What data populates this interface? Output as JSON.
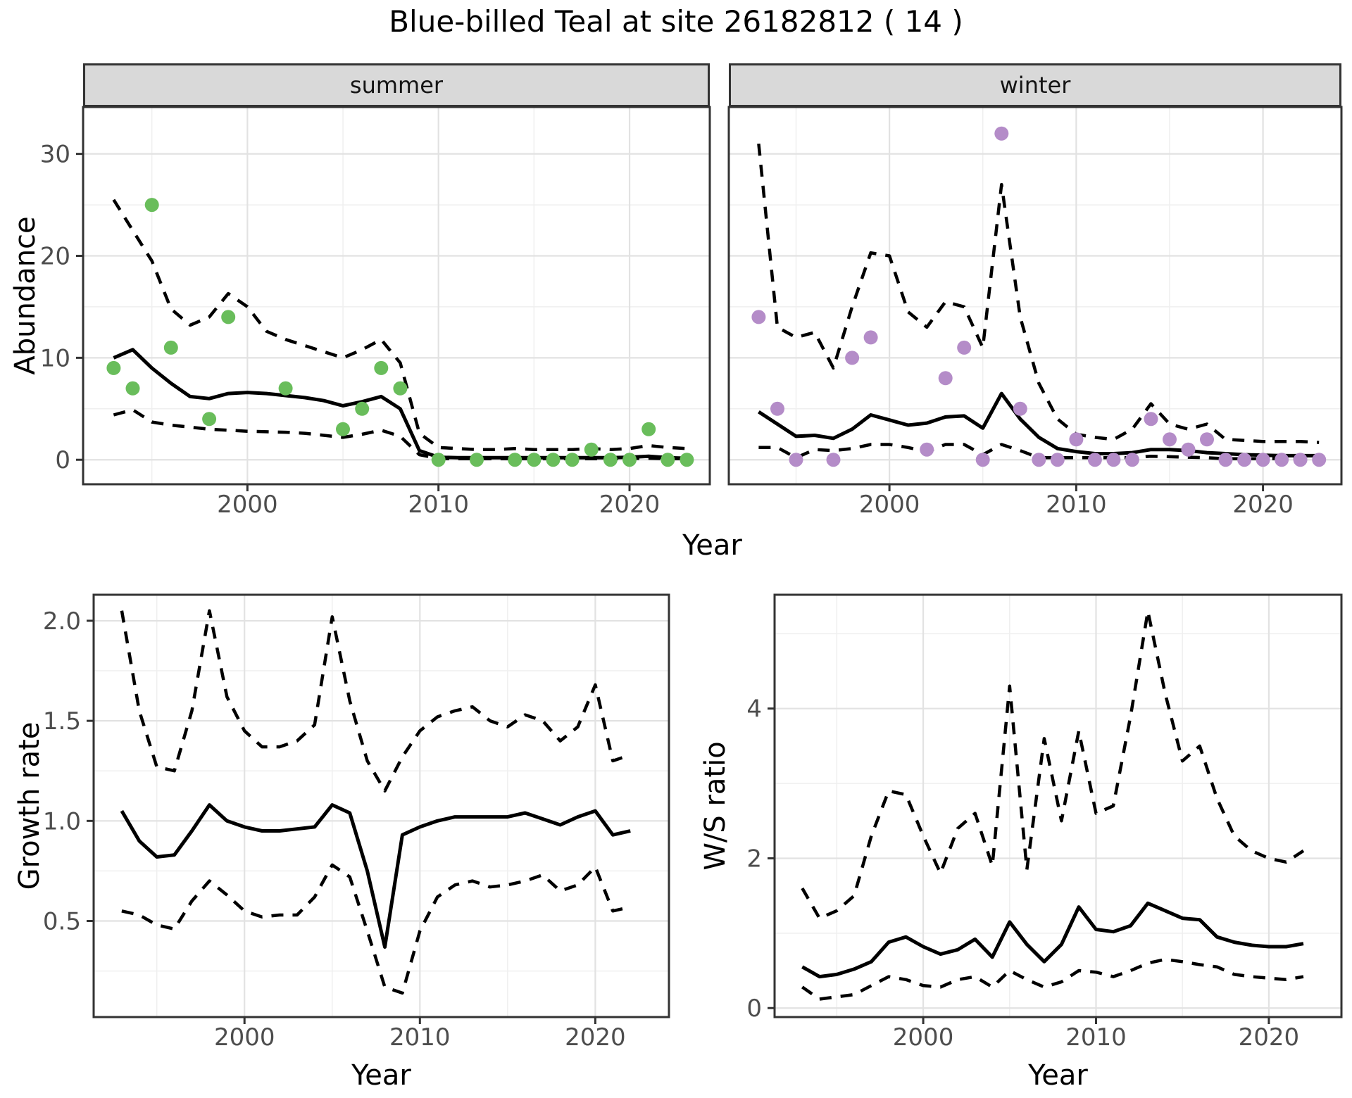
{
  "title": "Blue-billed Teal at site 26182812 ( 14 )",
  "colors": {
    "summer_points": "#69bd5b",
    "winter_points": "#b48cc8",
    "line": "#000000",
    "strip_bg": "#d9d9d9",
    "grid_major": "#e2e2e2",
    "grid_minor": "#efefef",
    "axis_text": "#4d4d4d",
    "panel_border": "#333333"
  },
  "chart_data": [
    {
      "id": "abundance-summer",
      "type": "line",
      "facet_label": "summer",
      "xlabel": "Year",
      "ylabel": "Abundance",
      "x_range": [
        1991.4,
        2024.2
      ],
      "y_range": [
        -2.4,
        34.6
      ],
      "xticks": {
        "values": [
          2000,
          2010,
          2020
        ],
        "labels": [
          "2000",
          "2010",
          "2020"
        ],
        "minor": [
          1995,
          2005,
          2015
        ]
      },
      "yticks": {
        "values": [
          0,
          10,
          20,
          30
        ],
        "labels": [
          "0",
          "10",
          "20",
          "30"
        ],
        "minor": [
          5,
          15,
          25
        ]
      },
      "line_years": [
        1993,
        1994,
        1995,
        1996,
        1997,
        1998,
        1999,
        2000,
        2001,
        2002,
        2003,
        2004,
        2005,
        2006,
        2007,
        2008,
        2009,
        2010,
        2011,
        2012,
        2013,
        2014,
        2015,
        2016,
        2017,
        2018,
        2019,
        2020,
        2021,
        2022,
        2023
      ],
      "series": [
        {
          "name": "upper-ci",
          "style": "dashed",
          "values": [
            25.5,
            22.5,
            19.5,
            14.8,
            13.2,
            14.0,
            16.3,
            15.0,
            12.6,
            11.8,
            11.2,
            10.6,
            10.0,
            10.8,
            11.8,
            9.5,
            2.6,
            1.2,
            1.1,
            1.0,
            1.0,
            1.1,
            1.0,
            1.0,
            1.0,
            1.1,
            1.0,
            1.1,
            1.4,
            1.2,
            1.1
          ]
        },
        {
          "name": "median",
          "style": "solid",
          "values": [
            10.0,
            10.8,
            9.0,
            7.5,
            6.2,
            6.0,
            6.5,
            6.6,
            6.5,
            6.3,
            6.1,
            5.8,
            5.3,
            5.7,
            6.2,
            5.0,
            0.9,
            0.25,
            0.2,
            0.2,
            0.2,
            0.2,
            0.2,
            0.2,
            0.2,
            0.2,
            0.2,
            0.25,
            0.35,
            0.2,
            0.15
          ]
        },
        {
          "name": "lower-ci",
          "style": "dashed",
          "values": [
            4.4,
            4.9,
            3.7,
            3.4,
            3.2,
            3.0,
            2.9,
            2.8,
            2.75,
            2.7,
            2.6,
            2.4,
            2.2,
            2.5,
            2.9,
            2.3,
            0.5,
            0.12,
            0.1,
            0.1,
            0.1,
            0.1,
            0.1,
            0.1,
            0.1,
            0.1,
            0.1,
            0.12,
            0.15,
            0.1,
            0.1
          ]
        }
      ],
      "points": {
        "color": "#69bd5b",
        "years": [
          1993,
          1994,
          1995,
          1996,
          1998,
          1999,
          2002,
          2005,
          2006,
          2007,
          2008,
          2010,
          2012,
          2014,
          2015,
          2016,
          2017,
          2018,
          2019,
          2020,
          2021,
          2022,
          2023
        ],
        "values": [
          9,
          7,
          25,
          11,
          4,
          14,
          7,
          3,
          5,
          9,
          7,
          0,
          0,
          0,
          0,
          0,
          0,
          1,
          0,
          0,
          3,
          0,
          0
        ]
      }
    },
    {
      "id": "abundance-winter",
      "type": "line",
      "facet_label": "winter",
      "xlabel": "Year",
      "ylabel": "Abundance",
      "x_range": [
        1991.4,
        2024.2
      ],
      "y_range": [
        -2.4,
        34.6
      ],
      "xticks": {
        "values": [
          2000,
          2010,
          2020
        ],
        "labels": [
          "2000",
          "2010",
          "2020"
        ],
        "minor": [
          1995,
          2005,
          2015
        ]
      },
      "yticks": {
        "values": [
          0,
          10,
          20,
          30
        ],
        "labels": [],
        "minor": [
          5,
          15,
          25
        ]
      },
      "line_years": [
        1993,
        1994,
        1995,
        1996,
        1997,
        1998,
        1999,
        2000,
        2001,
        2002,
        2003,
        2004,
        2005,
        2006,
        2007,
        2008,
        2009,
        2010,
        2011,
        2012,
        2013,
        2014,
        2015,
        2016,
        2017,
        2018,
        2019,
        2020,
        2021,
        2022,
        2023
      ],
      "series": [
        {
          "name": "upper-ci",
          "style": "dashed",
          "values": [
            31,
            13,
            12,
            12.5,
            9,
            15,
            20.3,
            20,
            14.5,
            13,
            15.5,
            15,
            11,
            27,
            14,
            7.5,
            4,
            2.5,
            2.2,
            2,
            3,
            5.5,
            3.5,
            3,
            3.5,
            2,
            1.9,
            1.8,
            1.8,
            1.8,
            1.7
          ]
        },
        {
          "name": "median",
          "style": "solid",
          "values": [
            4.7,
            3.5,
            2.3,
            2.4,
            2.1,
            3.0,
            4.4,
            3.9,
            3.4,
            3.6,
            4.2,
            4.3,
            3.1,
            6.5,
            4.0,
            2.2,
            1.1,
            0.8,
            0.6,
            0.6,
            0.7,
            1.0,
            1.0,
            0.9,
            0.7,
            0.6,
            0.5,
            0.45,
            0.4,
            0.4,
            0.4
          ]
        },
        {
          "name": "lower-ci",
          "style": "dashed",
          "values": [
            1.2,
            1.2,
            0.2,
            1.0,
            0.9,
            1.1,
            1.5,
            1.5,
            1.2,
            0.8,
            1.5,
            1.5,
            0.5,
            1.5,
            0.9,
            0.2,
            0.2,
            0.2,
            0.2,
            0.2,
            0.2,
            0.35,
            0.3,
            0.25,
            0.2,
            0.1,
            0.1,
            0.1,
            0.1,
            0.1,
            0.1
          ]
        }
      ],
      "points": {
        "color": "#b48cc8",
        "years": [
          1993,
          1994,
          1995,
          1997,
          1998,
          1999,
          2002,
          2003,
          2004,
          2005,
          2006,
          2007,
          2008,
          2009,
          2010,
          2011,
          2012,
          2013,
          2014,
          2015,
          2016,
          2017,
          2018,
          2019,
          2020,
          2021,
          2022,
          2023
        ],
        "values": [
          14,
          5,
          0,
          0,
          10,
          12,
          1,
          8,
          11,
          0,
          32,
          5,
          0,
          0,
          2,
          0,
          0,
          0,
          4,
          2,
          1,
          2,
          0,
          0,
          0,
          0,
          0,
          0
        ]
      }
    },
    {
      "id": "growth-rate",
      "type": "line",
      "facet_label": "",
      "xlabel": "Year",
      "ylabel": "Growth rate",
      "x_range": [
        1991.4,
        2024.2
      ],
      "y_range": [
        0.02,
        2.13
      ],
      "xticks": {
        "values": [
          2000,
          2010,
          2020
        ],
        "labels": [
          "2000",
          "2010",
          "2020"
        ],
        "minor": [
          1995,
          2005,
          2015
        ]
      },
      "yticks": {
        "values": [
          0.5,
          1.0,
          1.5,
          2.0
        ],
        "labels": [
          "0.5",
          "1.0",
          "1.5",
          "2.0"
        ],
        "minor": [
          0.25,
          0.75,
          1.25,
          1.75
        ]
      },
      "line_years": [
        1993,
        1994,
        1995,
        1996,
        1997,
        1998,
        1999,
        2000,
        2001,
        2002,
        2003,
        2004,
        2005,
        2006,
        2007,
        2008,
        2009,
        2010,
        2011,
        2012,
        2013,
        2014,
        2015,
        2016,
        2017,
        2018,
        2019,
        2020,
        2021,
        2022
      ],
      "series": [
        {
          "name": "upper-ci",
          "style": "dashed",
          "values": [
            2.05,
            1.55,
            1.27,
            1.25,
            1.55,
            2.05,
            1.62,
            1.45,
            1.37,
            1.37,
            1.4,
            1.48,
            2.02,
            1.6,
            1.3,
            1.15,
            1.32,
            1.45,
            1.52,
            1.55,
            1.57,
            1.5,
            1.47,
            1.53,
            1.5,
            1.4,
            1.47,
            1.68,
            1.3,
            1.33
          ]
        },
        {
          "name": "median",
          "style": "solid",
          "values": [
            1.05,
            0.9,
            0.82,
            0.83,
            0.95,
            1.08,
            1.0,
            0.97,
            0.95,
            0.95,
            0.96,
            0.97,
            1.08,
            1.04,
            0.75,
            0.37,
            0.93,
            0.97,
            1.0,
            1.02,
            1.02,
            1.02,
            1.02,
            1.04,
            1.01,
            0.98,
            1.02,
            1.05,
            0.93,
            0.95
          ]
        },
        {
          "name": "lower-ci",
          "style": "dashed",
          "values": [
            0.55,
            0.53,
            0.48,
            0.46,
            0.6,
            0.7,
            0.63,
            0.55,
            0.52,
            0.53,
            0.53,
            0.62,
            0.78,
            0.72,
            0.45,
            0.17,
            0.14,
            0.45,
            0.62,
            0.68,
            0.7,
            0.67,
            0.68,
            0.7,
            0.73,
            0.65,
            0.68,
            0.77,
            0.55,
            0.57
          ]
        }
      ],
      "points": null
    },
    {
      "id": "ws-ratio",
      "type": "line",
      "facet_label": "",
      "xlabel": "Year",
      "ylabel": "W/S ratio",
      "x_range": [
        1991.4,
        2024.2
      ],
      "y_range": [
        -0.12,
        5.52
      ],
      "xticks": {
        "values": [
          2000,
          2010,
          2020
        ],
        "labels": [
          "2000",
          "2010",
          "2020"
        ],
        "minor": [
          1995,
          2005,
          2015
        ]
      },
      "yticks": {
        "values": [
          0,
          2,
          4
        ],
        "labels": [
          "0",
          "2",
          "4"
        ],
        "minor": [
          1,
          3,
          5
        ]
      },
      "line_years": [
        1993,
        1994,
        1995,
        1996,
        1997,
        1998,
        1999,
        2000,
        2001,
        2002,
        2003,
        2004,
        2005,
        2006,
        2007,
        2008,
        2009,
        2010,
        2011,
        2012,
        2013,
        2014,
        2015,
        2016,
        2017,
        2018,
        2019,
        2020,
        2021,
        2022
      ],
      "series": [
        {
          "name": "upper-ci",
          "style": "dashed",
          "values": [
            1.6,
            1.2,
            1.3,
            1.5,
            2.3,
            2.9,
            2.85,
            2.3,
            1.8,
            2.4,
            2.6,
            1.9,
            4.3,
            1.85,
            3.6,
            2.5,
            3.7,
            2.6,
            2.7,
            3.9,
            5.3,
            4.2,
            3.3,
            3.5,
            2.8,
            2.3,
            2.1,
            2.0,
            1.95,
            2.1
          ]
        },
        {
          "name": "median",
          "style": "solid",
          "values": [
            0.55,
            0.42,
            0.45,
            0.52,
            0.62,
            0.88,
            0.95,
            0.82,
            0.72,
            0.78,
            0.92,
            0.68,
            1.15,
            0.85,
            0.62,
            0.85,
            1.35,
            1.05,
            1.02,
            1.1,
            1.4,
            1.3,
            1.2,
            1.18,
            0.95,
            0.88,
            0.84,
            0.82,
            0.82,
            0.86
          ]
        },
        {
          "name": "lower-ci",
          "style": "dashed",
          "values": [
            0.28,
            0.12,
            0.15,
            0.18,
            0.3,
            0.42,
            0.38,
            0.3,
            0.28,
            0.38,
            0.42,
            0.28,
            0.5,
            0.38,
            0.28,
            0.35,
            0.5,
            0.48,
            0.42,
            0.5,
            0.6,
            0.65,
            0.62,
            0.58,
            0.55,
            0.45,
            0.42,
            0.4,
            0.38,
            0.42
          ]
        }
      ],
      "points": null
    }
  ]
}
